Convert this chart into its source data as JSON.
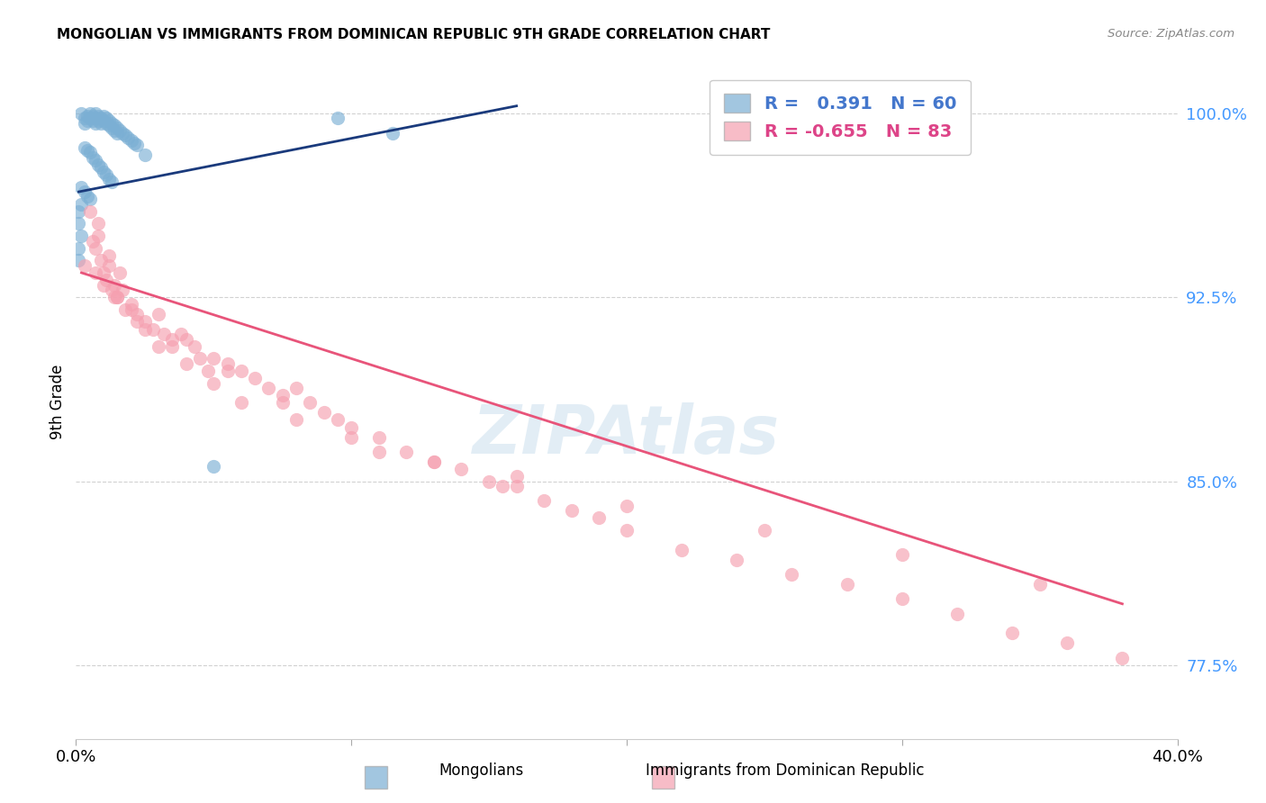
{
  "title": "MONGOLIAN VS IMMIGRANTS FROM DOMINICAN REPUBLIC 9TH GRADE CORRELATION CHART",
  "source": "Source: ZipAtlas.com",
  "ylabel": "9th Grade",
  "ytick_labels": [
    "77.5%",
    "85.0%",
    "92.5%",
    "100.0%"
  ],
  "ytick_vals": [
    0.775,
    0.85,
    0.925,
    1.0
  ],
  "xlim": [
    0.0,
    0.4
  ],
  "ylim": [
    0.745,
    1.02
  ],
  "legend_blue_r": "0.391",
  "legend_blue_n": "60",
  "legend_pink_r": "-0.655",
  "legend_pink_n": "83",
  "blue_color": "#7bafd4",
  "pink_color": "#f5a0b0",
  "blue_line_color": "#1a3a7c",
  "pink_line_color": "#e8547a",
  "blue_scatter_x": [
    0.002,
    0.003,
    0.003,
    0.004,
    0.004,
    0.005,
    0.005,
    0.006,
    0.006,
    0.007,
    0.007,
    0.007,
    0.008,
    0.008,
    0.009,
    0.009,
    0.01,
    0.01,
    0.011,
    0.011,
    0.012,
    0.012,
    0.013,
    0.013,
    0.014,
    0.014,
    0.015,
    0.015,
    0.016,
    0.017,
    0.018,
    0.019,
    0.02,
    0.021,
    0.022,
    0.003,
    0.004,
    0.005,
    0.006,
    0.007,
    0.008,
    0.009,
    0.01,
    0.011,
    0.012,
    0.013,
    0.002,
    0.003,
    0.004,
    0.005,
    0.095,
    0.115,
    0.002,
    0.002,
    0.001,
    0.001,
    0.001,
    0.001,
    0.025,
    0.05
  ],
  "blue_scatter_y": [
    1.0,
    0.998,
    0.996,
    0.999,
    0.997,
    1.0,
    0.998,
    0.999,
    0.997,
    1.0,
    0.998,
    0.996,
    0.999,
    0.997,
    0.998,
    0.996,
    0.999,
    0.997,
    0.998,
    0.996,
    0.997,
    0.995,
    0.996,
    0.994,
    0.995,
    0.993,
    0.994,
    0.992,
    0.993,
    0.992,
    0.991,
    0.99,
    0.989,
    0.988,
    0.987,
    0.986,
    0.985,
    0.984,
    0.982,
    0.981,
    0.979,
    0.978,
    0.976,
    0.975,
    0.973,
    0.972,
    0.97,
    0.968,
    0.966,
    0.965,
    0.998,
    0.992,
    0.963,
    0.95,
    0.96,
    0.955,
    0.945,
    0.94,
    0.983,
    0.856
  ],
  "pink_scatter_x": [
    0.003,
    0.005,
    0.007,
    0.008,
    0.009,
    0.01,
    0.011,
    0.012,
    0.013,
    0.014,
    0.015,
    0.016,
    0.017,
    0.018,
    0.02,
    0.022,
    0.025,
    0.028,
    0.03,
    0.032,
    0.035,
    0.038,
    0.04,
    0.043,
    0.045,
    0.048,
    0.05,
    0.055,
    0.06,
    0.065,
    0.07,
    0.075,
    0.08,
    0.085,
    0.09,
    0.095,
    0.1,
    0.11,
    0.12,
    0.13,
    0.14,
    0.15,
    0.16,
    0.17,
    0.18,
    0.19,
    0.2,
    0.22,
    0.24,
    0.26,
    0.28,
    0.3,
    0.32,
    0.34,
    0.36,
    0.38,
    0.006,
    0.008,
    0.01,
    0.012,
    0.015,
    0.02,
    0.025,
    0.03,
    0.04,
    0.05,
    0.06,
    0.08,
    0.1,
    0.13,
    0.16,
    0.2,
    0.25,
    0.3,
    0.35,
    0.007,
    0.014,
    0.022,
    0.035,
    0.055,
    0.075,
    0.11,
    0.155
  ],
  "pink_scatter_y": [
    0.938,
    0.96,
    0.945,
    0.95,
    0.94,
    0.935,
    0.932,
    0.942,
    0.928,
    0.93,
    0.925,
    0.935,
    0.928,
    0.92,
    0.922,
    0.918,
    0.915,
    0.912,
    0.918,
    0.91,
    0.905,
    0.91,
    0.908,
    0.905,
    0.9,
    0.895,
    0.9,
    0.898,
    0.895,
    0.892,
    0.888,
    0.885,
    0.888,
    0.882,
    0.878,
    0.875,
    0.872,
    0.868,
    0.862,
    0.858,
    0.855,
    0.85,
    0.848,
    0.842,
    0.838,
    0.835,
    0.83,
    0.822,
    0.818,
    0.812,
    0.808,
    0.802,
    0.796,
    0.788,
    0.784,
    0.778,
    0.948,
    0.955,
    0.93,
    0.938,
    0.925,
    0.92,
    0.912,
    0.905,
    0.898,
    0.89,
    0.882,
    0.875,
    0.868,
    0.858,
    0.852,
    0.84,
    0.83,
    0.82,
    0.808,
    0.935,
    0.925,
    0.915,
    0.908,
    0.895,
    0.882,
    0.862,
    0.848
  ],
  "blue_trendline_x": [
    0.001,
    0.16
  ],
  "blue_trendline_y": [
    0.968,
    1.003
  ],
  "pink_trendline_x": [
    0.002,
    0.38
  ],
  "pink_trendline_y": [
    0.935,
    0.8
  ]
}
